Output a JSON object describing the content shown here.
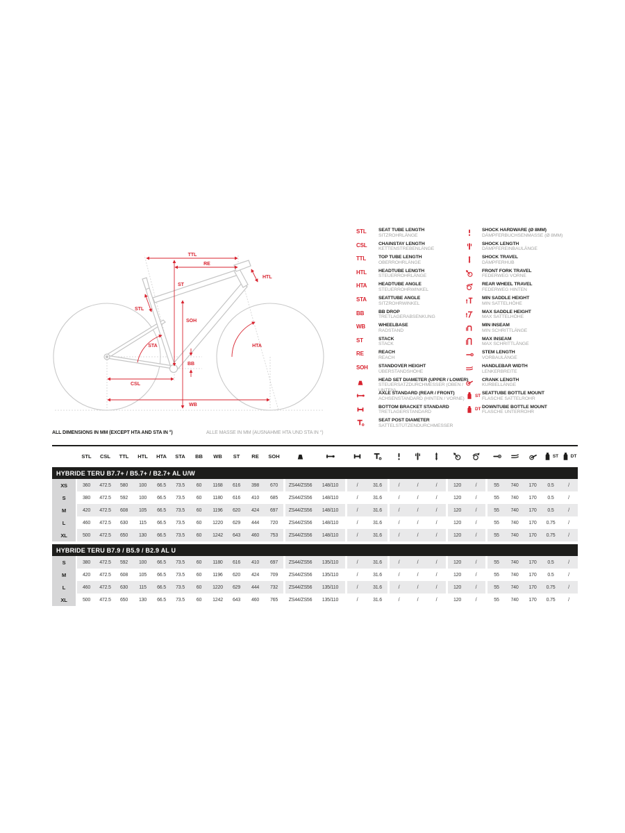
{
  "colors": {
    "accent_red": "#d8232f",
    "dark": "#1d1d1b",
    "muted_gray": "#a3a3a2",
    "row_stripe": "#e9e9ea",
    "size_cell_gray": "#d6d6d7",
    "frame_gray": "#c6c6c6"
  },
  "diagram": {
    "labels": {
      "ttl": "TTL",
      "re": "RE",
      "htl": "HTL",
      "st": "ST",
      "stl": "STL",
      "soh": "SOH",
      "sta": "STA",
      "hta": "HTA",
      "bb": "BB",
      "csl": "CSL",
      "wb": "WB"
    }
  },
  "footnote": {
    "en": "ALL DIMENSIONS IN MM (EXCEPT HTA AND STA IN °)",
    "de": "ALLE MASSE IN MM (AUSNAHME HTA UND STA IN °)"
  },
  "legend": {
    "left": [
      {
        "abbr": "STL",
        "label": "SEAT TUBE LENGTH",
        "sub": "SITZROHRLÄNGE"
      },
      {
        "abbr": "CSL",
        "label": "CHAINSTAY LENGTH",
        "sub": "KETTENSTREBENLÄNGE"
      },
      {
        "abbr": "TTL",
        "label": "TOP TUBE LENGTH",
        "sub": "OBERROHRLÄNGE"
      },
      {
        "abbr": "HTL",
        "label": "HEADTUBE LENGTH",
        "sub": "STEUERROHRLÄNGE"
      },
      {
        "abbr": "HTA",
        "label": "HEADTUBE ANGLE",
        "sub": "STEUERROHRWINKEL"
      },
      {
        "abbr": "STA",
        "label": "SEATTUBE ANGLE",
        "sub": "SITZROHRWINKEL"
      },
      {
        "abbr": "BB",
        "label": "BB DROP",
        "sub": "TRETLAGERABSENKUNG"
      },
      {
        "abbr": "WB",
        "label": "WHEELBASE",
        "sub": "RADSTAND"
      },
      {
        "abbr": "ST",
        "label": "STACK",
        "sub": "STACK"
      },
      {
        "abbr": "RE",
        "label": "REACH",
        "sub": "REACH"
      },
      {
        "abbr": "SOH",
        "label": "STANDOVER HEIGHT",
        "sub": "ÜBERSTANDSHÖHE"
      },
      {
        "icon": "headset",
        "label": "HEAD SET DIAMETER (UPPER / LOWER)",
        "sub": "STEUERSATZDURCHMESSER (OBEN / UNTEN)"
      },
      {
        "icon": "axle",
        "label": "AXLE STANDARD (REAR / FRONT)",
        "sub": "ACHSENSTANDARD (HINTEN / VORNE)"
      },
      {
        "icon": "bottom-bracket",
        "label": "BOTTOM BRACKET STANDARD",
        "sub": "TRETLAGERSTANDARD"
      },
      {
        "icon": "seatpost",
        "label": "SEAT POST DIAMETER",
        "sub": "SATTELSTÜTZENDURCHMESSER"
      }
    ],
    "right": [
      {
        "icon": "shock-hardware",
        "label": "SHOCK HARDWARE (Ø 8MM)",
        "sub": "DÄMPFERBUCHSENMASSE (Ø 8MM)"
      },
      {
        "icon": "shock-length",
        "label": "SHOCK LENGTH",
        "sub": "DÄMPFEREINBAULÄNGE"
      },
      {
        "icon": "shock-travel",
        "label": "SHOCK TRAVEL",
        "sub": "DÄMPFERHUB"
      },
      {
        "icon": "fork-travel",
        "label": "FRONT FORK TRAVEL",
        "sub": "FEDERWEG VORNE"
      },
      {
        "icon": "rear-travel",
        "label": "REAR WHEEL TRAVEL",
        "sub": "FEDERWEG HINTEN"
      },
      {
        "icon": "min-saddle",
        "label": "MIN SADDLE HEIGHT",
        "sub": "MIN SATTELHÖHE"
      },
      {
        "icon": "max-saddle",
        "label": "MAX SADDLE HEIGHT",
        "sub": "MAX SATTELHÖHE"
      },
      {
        "icon": "min-inseam",
        "label": "MIN INSEAM",
        "sub": "MIN SCHRITTLÄNGE"
      },
      {
        "icon": "max-inseam",
        "label": "MAX INSEAM",
        "sub": "MAX SCHRITTLÄNGE"
      },
      {
        "icon": "stem",
        "label": "STEM LENGTH",
        "sub": "VORBAULÄNGE"
      },
      {
        "icon": "handlebar",
        "label": "HANDLEBAR WIDTH",
        "sub": "LENKERBREITE"
      },
      {
        "icon": "crank",
        "label": "CRANK LENGTH",
        "sub": "KURBELLÄNGE"
      },
      {
        "icon": "bottle",
        "icon_text": "ST",
        "label": "SEATTUBE BOTTLE MOUNT",
        "sub": "FLASCHE SATTELROHR"
      },
      {
        "icon": "bottle",
        "icon_text": "DT",
        "label": "DOWNTUBE BOTTLE MOUNT",
        "sub": "FLASCHE UNTERROHR"
      }
    ]
  },
  "table": {
    "columns": [
      {
        "type": "text",
        "label": "STL"
      },
      {
        "type": "text",
        "label": "CSL"
      },
      {
        "type": "text",
        "label": "TTL"
      },
      {
        "type": "text",
        "label": "HTL"
      },
      {
        "type": "text",
        "label": "HTA"
      },
      {
        "type": "text",
        "label": "STA"
      },
      {
        "type": "text",
        "label": "BB"
      },
      {
        "type": "text",
        "label": "WB"
      },
      {
        "type": "text",
        "label": "ST"
      },
      {
        "type": "text",
        "label": "RE"
      },
      {
        "type": "text",
        "label": "SOH"
      },
      {
        "type": "icon",
        "icon": "headset"
      },
      {
        "type": "icon",
        "icon": "axle"
      },
      {
        "type": "icon",
        "icon": "bottom-bracket"
      },
      {
        "type": "icon",
        "icon": "seatpost"
      },
      {
        "type": "icon",
        "icon": "shock-hardware"
      },
      {
        "type": "icon",
        "icon": "shock-length"
      },
      {
        "type": "icon",
        "icon": "shock-travel"
      },
      {
        "type": "icon",
        "icon": "fork-travel"
      },
      {
        "type": "icon",
        "icon": "rear-travel"
      },
      {
        "type": "icon",
        "icon": "stem"
      },
      {
        "type": "icon",
        "icon": "handlebar"
      },
      {
        "type": "icon",
        "icon": "crank"
      },
      {
        "type": "icon",
        "icon": "bottle",
        "text": "ST"
      },
      {
        "type": "icon",
        "icon": "bottle",
        "text": "DT"
      }
    ],
    "sections": [
      {
        "title": "HYBRIDE TERU B7.7+ / B5.7+ / B2.7+ AL U/W",
        "rows": [
          {
            "size": "XS",
            "values": [
              "360",
              "472.5",
              "580",
              "100",
              "66.5",
              "73.5",
              "60",
              "1168",
              "616",
              "398",
              "670",
              "ZS44/ZS56",
              "148/110",
              "/",
              "31.6",
              "/",
              "/",
              "/",
              "120",
              "/",
              "55",
              "740",
              "170",
              "0.5",
              "/"
            ]
          },
          {
            "size": "S",
            "values": [
              "380",
              "472.5",
              "592",
              "100",
              "66.5",
              "73.5",
              "60",
              "1180",
              "616",
              "410",
              "685",
              "ZS44/ZS56",
              "148/110",
              "/",
              "31.6",
              "/",
              "/",
              "/",
              "120",
              "/",
              "55",
              "740",
              "170",
              "0.5",
              "/"
            ]
          },
          {
            "size": "M",
            "values": [
              "420",
              "472.5",
              "608",
              "105",
              "66.5",
              "73.5",
              "60",
              "1196",
              "620",
              "424",
              "697",
              "ZS44/ZS56",
              "148/110",
              "/",
              "31.6",
              "/",
              "/",
              "/",
              "120",
              "/",
              "55",
              "740",
              "170",
              "0.5",
              "/"
            ]
          },
          {
            "size": "L",
            "values": [
              "460",
              "472.5",
              "630",
              "115",
              "66.5",
              "73.5",
              "60",
              "1220",
              "629",
              "444",
              "720",
              "ZS44/ZS56",
              "148/110",
              "/",
              "31.6",
              "/",
              "/",
              "/",
              "120",
              "/",
              "55",
              "740",
              "170",
              "0.75",
              "/"
            ]
          },
          {
            "size": "XL",
            "values": [
              "500",
              "472.5",
              "650",
              "130",
              "66.5",
              "73.5",
              "60",
              "1242",
              "643",
              "460",
              "753",
              "ZS44/ZS56",
              "148/110",
              "/",
              "31.6",
              "/",
              "/",
              "/",
              "120",
              "/",
              "55",
              "740",
              "170",
              "0.75",
              "/"
            ]
          }
        ]
      },
      {
        "title": "HYBRIDE TERU B7.9 / B5.9 / B2.9 AL U",
        "rows": [
          {
            "size": "S",
            "values": [
              "380",
              "472.5",
              "592",
              "100",
              "66.5",
              "73.5",
              "60",
              "1180",
              "616",
              "410",
              "697",
              "ZS44/ZS56",
              "135/110",
              "/",
              "31.6",
              "/",
              "/",
              "/",
              "120",
              "/",
              "55",
              "740",
              "170",
              "0.5",
              "/"
            ]
          },
          {
            "size": "M",
            "values": [
              "420",
              "472.5",
              "608",
              "105",
              "66.5",
              "73.5",
              "60",
              "1196",
              "620",
              "424",
              "709",
              "ZS44/ZS56",
              "135/110",
              "/",
              "31.6",
              "/",
              "/",
              "/",
              "120",
              "/",
              "55",
              "740",
              "170",
              "0.5",
              "/"
            ]
          },
          {
            "size": "L",
            "values": [
              "460",
              "472.5",
              "630",
              "115",
              "66.5",
              "73.5",
              "60",
              "1220",
              "629",
              "444",
              "732",
              "ZS44/ZS56",
              "135/110",
              "/",
              "31.6",
              "/",
              "/",
              "/",
              "120",
              "/",
              "55",
              "740",
              "170",
              "0.75",
              "/"
            ]
          },
          {
            "size": "XL",
            "values": [
              "500",
              "472.5",
              "650",
              "130",
              "66.5",
              "73.5",
              "60",
              "1242",
              "643",
              "460",
              "765",
              "ZS44/ZS56",
              "135/110",
              "/",
              "31.6",
              "/",
              "/",
              "/",
              "120",
              "/",
              "55",
              "740",
              "170",
              "0.75",
              "/"
            ]
          }
        ]
      }
    ]
  }
}
